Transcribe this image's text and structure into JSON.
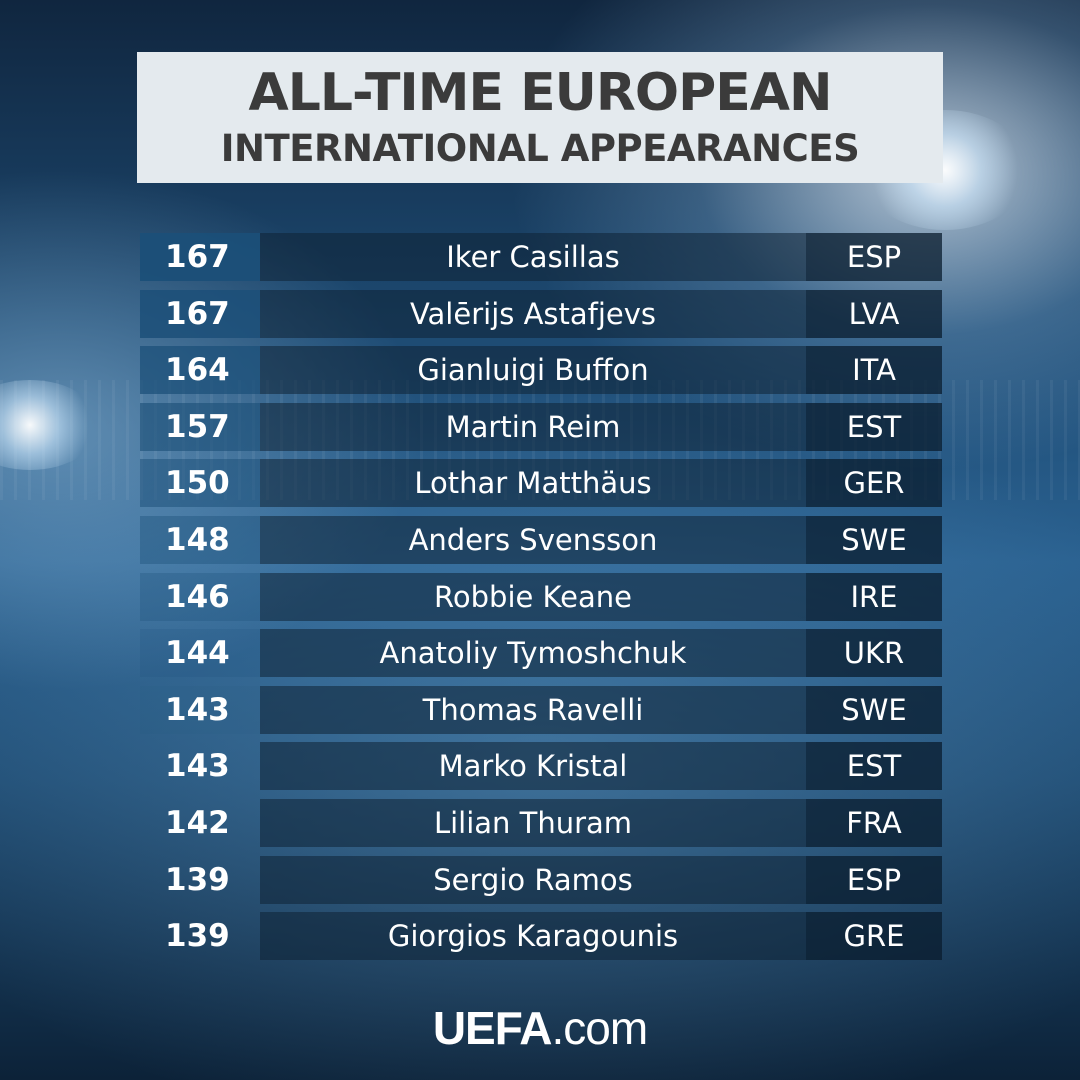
{
  "title": {
    "line1": "ALL-TIME EUROPEAN",
    "line2": "INTERNATIONAL APPEARANCES"
  },
  "colors": {
    "title_box": "#e4eaee",
    "title_text": "#3b3b3b",
    "rank_cell_top": "#1b4f78",
    "text": "#ffffff"
  },
  "rows": [
    {
      "caps": "167",
      "player": "Iker Casillas",
      "nation": "ESP"
    },
    {
      "caps": "167",
      "player": "Valērijs Astafjevs",
      "nation": "LVA"
    },
    {
      "caps": "164",
      "player": "Gianluigi Buffon",
      "nation": "ITA"
    },
    {
      "caps": "157",
      "player": "Martin Reim",
      "nation": "EST"
    },
    {
      "caps": "150",
      "player": "Lothar Matthäus",
      "nation": "GER"
    },
    {
      "caps": "148",
      "player": "Anders Svensson",
      "nation": "SWE"
    },
    {
      "caps": "146",
      "player": "Robbie Keane",
      "nation": "IRE"
    },
    {
      "caps": "144",
      "player": "Anatoliy Tymoshchuk",
      "nation": "UKR"
    },
    {
      "caps": "143",
      "player": "Thomas Ravelli",
      "nation": "SWE"
    },
    {
      "caps": "143",
      "player": "Marko Kristal",
      "nation": "EST"
    },
    {
      "caps": "142",
      "player": "Lilian Thuram",
      "nation": "FRA"
    },
    {
      "caps": "139",
      "player": "Sergio Ramos",
      "nation": "ESP"
    },
    {
      "caps": "139",
      "player": "Giorgios Karagounis",
      "nation": "GRE"
    }
  ],
  "logo": {
    "brand": "UEFA",
    "suffix": ".com"
  }
}
